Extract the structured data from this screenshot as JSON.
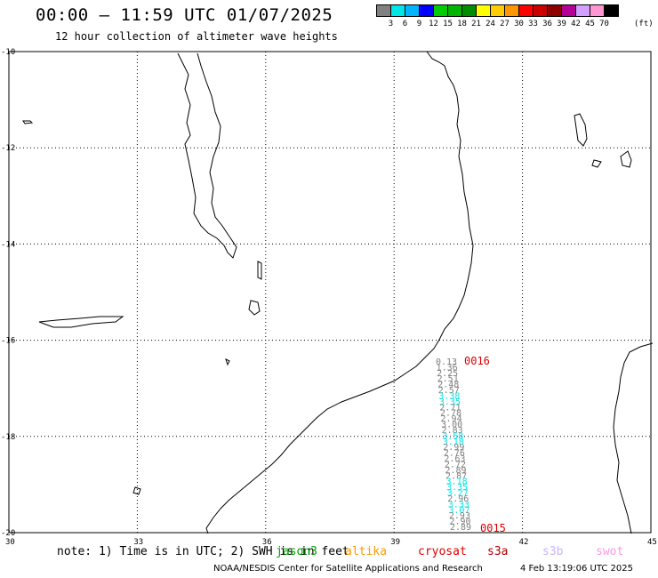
{
  "header": {
    "title": "00:00 – 11:59 UTC 01/07/2025",
    "subtitle": "12 hour collection of altimeter wave heights"
  },
  "color_scale": {
    "labels": [
      "3",
      "6",
      "9",
      "12",
      "15",
      "18",
      "21",
      "24",
      "27",
      "30",
      "33",
      "36",
      "39",
      "42",
      "45",
      "70"
    ],
    "unit": "(ft)",
    "colors": [
      "#808080",
      "#00e5e5",
      "#00b4ff",
      "#0000ff",
      "#00cc00",
      "#00b400",
      "#008c00",
      "#ffff00",
      "#ffcc00",
      "#ff9600",
      "#ff0000",
      "#cc0000",
      "#8c0000",
      "#b40096",
      "#d2a0ff",
      "#ff96d2",
      "#000000"
    ]
  },
  "map": {
    "lon_ticks": [
      "30",
      "33",
      "36",
      "39",
      "42",
      "45"
    ],
    "lat_ticks": [
      "-10",
      "-12",
      "-14",
      "-16",
      "-18",
      "-20"
    ],
    "pass_start_label": "0016",
    "pass_end_label": "0015",
    "wave_heights": [
      {
        "v": "0.13",
        "c": "#808080"
      },
      {
        "v": "1.36",
        "c": "#808080"
      },
      {
        "v": "2.25",
        "c": "#808080"
      },
      {
        "v": "2.51",
        "c": "#808080"
      },
      {
        "v": "2.48",
        "c": "#808080"
      },
      {
        "v": "2.57",
        "c": "#808080"
      },
      {
        "v": "3.38",
        "c": "#00e5e5"
      },
      {
        "v": "3.35",
        "c": "#00e5e5"
      },
      {
        "v": "2.71",
        "c": "#808080"
      },
      {
        "v": "2.78",
        "c": "#808080"
      },
      {
        "v": "2.94",
        "c": "#808080"
      },
      {
        "v": "3.00",
        "c": "#808080"
      },
      {
        "v": "2.83",
        "c": "#808080"
      },
      {
        "v": "3.58",
        "c": "#00e5e5"
      },
      {
        "v": "3.18",
        "c": "#00e5e5"
      },
      {
        "v": "2.99",
        "c": "#808080"
      },
      {
        "v": "2.76",
        "c": "#808080"
      },
      {
        "v": "2.63",
        "c": "#808080"
      },
      {
        "v": "2.72",
        "c": "#808080"
      },
      {
        "v": "2.89",
        "c": "#808080"
      },
      {
        "v": "2.87",
        "c": "#808080"
      },
      {
        "v": "3.18",
        "c": "#00e5e5"
      },
      {
        "v": "3.35",
        "c": "#00e5e5"
      },
      {
        "v": "3.27",
        "c": "#00e5e5"
      },
      {
        "v": "2.96",
        "c": "#808080"
      },
      {
        "v": "3.33",
        "c": "#00e5e5"
      },
      {
        "v": "3.07",
        "c": "#00e5e5"
      },
      {
        "v": "2.93",
        "c": "#808080"
      },
      {
        "v": "2.90",
        "c": "#808080"
      },
      {
        "v": "2.89",
        "c": "#808080"
      }
    ]
  },
  "footer": {
    "note": "note: 1) Time is in UTC; 2) SWH is in feet",
    "satellites": [
      {
        "name": "jason3",
        "color": "#00a000"
      },
      {
        "name": "altika",
        "color": "#ff9900"
      },
      {
        "name": "cryosat",
        "color": "#dd0000"
      },
      {
        "name": "s3a",
        "color": "#aa0000"
      },
      {
        "name": "s3b",
        "color": "#c8b4ff"
      },
      {
        "name": "swot",
        "color": "#ff96e6"
      }
    ],
    "credit": "NOAA/NESDIS Center for Satellite Applications and Research",
    "timestamp": "4 Feb 13:19:06 UTC 2025"
  }
}
